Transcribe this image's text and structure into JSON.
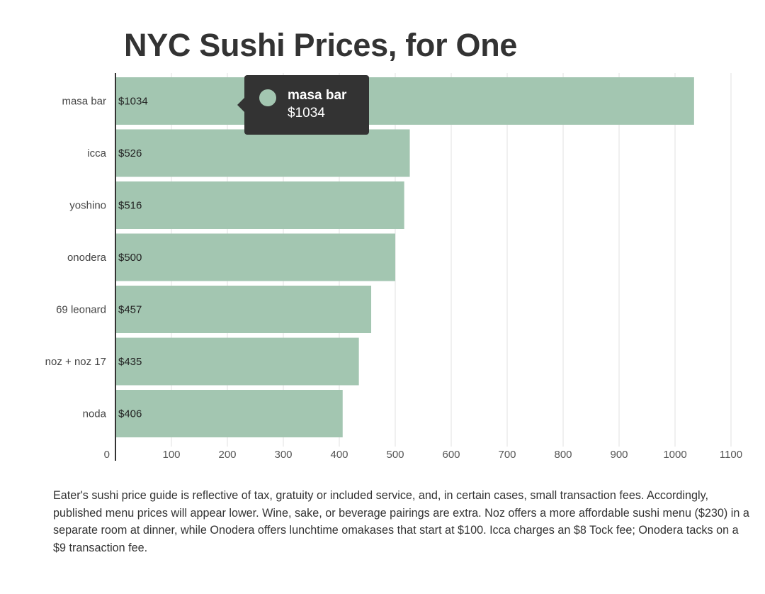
{
  "chart_data": {
    "type": "bar",
    "orientation": "horizontal",
    "title": "NYC Sushi Prices, for One",
    "categories": [
      "masa bar",
      "icca",
      "yoshino",
      "onodera",
      "69 leonard",
      "noz + noz 17",
      "noda"
    ],
    "values": [
      1034,
      526,
      516,
      500,
      457,
      435,
      406
    ],
    "data_labels": [
      "$1034",
      "$526",
      "$516",
      "$500",
      "$457",
      "$435",
      "$406"
    ],
    "xlim": [
      0,
      1100
    ],
    "x_ticks": [
      0,
      100,
      200,
      300,
      400,
      500,
      600,
      700,
      800,
      900,
      1000,
      1100
    ],
    "x_tick_labels": [
      "0",
      "100",
      "200",
      "300",
      "400",
      "500",
      "600",
      "700",
      "800",
      "900",
      "1000",
      "1100"
    ],
    "xlabel": "",
    "ylabel": "",
    "grid": true,
    "legend": "none",
    "bar_color": "#a3c6b1"
  },
  "tooltip": {
    "name": "masa bar",
    "value": "$1034",
    "swatch_color": "#a3c6b1"
  },
  "note": "Eater's sushi price guide is reflective of tax, gratuity or included service, and, in certain cases, small transaction fees. Accordingly, published menu prices will appear lower. Wine, sake, or beverage pairings are extra. Noz offers a more affordable sushi menu ($230) in a separate room at dinner, while Onodera offers lunchtime omakases that start at $100. Icca charges an $8 Tock fee; Onodera tacks on a $9 transaction fee.",
  "colors": {
    "text": "#333333",
    "axis": "#333333",
    "grid": "#e2e2e2",
    "tooltip_bg": "#333333"
  }
}
